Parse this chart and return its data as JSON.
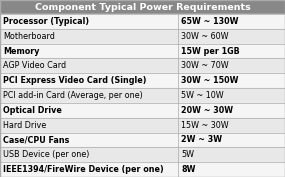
{
  "title": "Component Typical Power Requirements",
  "title_bg": "#888888",
  "title_fg": "#ffffff",
  "rows": [
    [
      "Processor (Typical)",
      "65W ~ 130W",
      true
    ],
    [
      "Motherboard",
      "30W ~ 60W",
      false
    ],
    [
      "Memory",
      "15W per 1GB",
      true
    ],
    [
      "AGP Video Card",
      "30W ~ 70W",
      false
    ],
    [
      "PCI Express Video Card (Single)",
      "30W ~ 150W",
      true
    ],
    [
      "PCI add-in Card (Average, per one)",
      "5W ~ 10W",
      false
    ],
    [
      "Optical Drive",
      "20W ~ 30W",
      true
    ],
    [
      "Hard Drive",
      "15W ~ 30W",
      false
    ],
    [
      "Case/CPU Fans",
      "2W ~ 3W",
      true
    ],
    [
      "USB Device (per one)",
      "5W",
      false
    ],
    [
      "IEEE1394/FireWire Device (per one)",
      "8W",
      true
    ]
  ],
  "row_bg_even": "#f5f5f5",
  "row_bg_odd": "#e8e8e8",
  "border_color": "#aaaaaa",
  "text_color": "#000000",
  "col_split": 0.625,
  "font_size": 5.8,
  "title_font_size": 6.8
}
